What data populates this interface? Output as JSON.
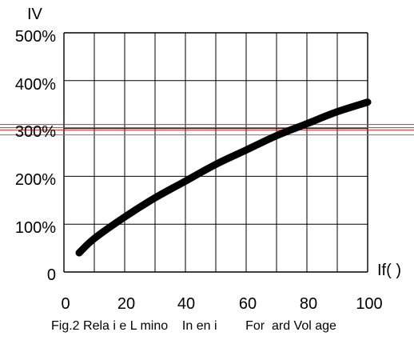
{
  "chart_data": {
    "type": "line",
    "title": "",
    "caption": "Fig.2 Rela i e L mino    In en i        For  ard Vol age",
    "ylabel": "IV",
    "xlabel": "If(   )",
    "xlim": [
      0,
      100
    ],
    "ylim": [
      0,
      500
    ],
    "x_ticks": [
      "0",
      "20",
      "40",
      "60",
      "80",
      "100"
    ],
    "y_ticks": [
      "0",
      "100%",
      "200%",
      "300%",
      "400%",
      "500%"
    ],
    "grid": true,
    "series": [
      {
        "x": [
          5,
          10,
          20,
          30,
          40,
          50,
          60,
          70,
          80,
          90,
          100
        ],
        "y": [
          40,
          70,
          115,
          155,
          190,
          225,
          255,
          285,
          310,
          335,
          355
        ]
      }
    ]
  },
  "colors": {
    "line": "#000000",
    "grid": "#000000",
    "overlay_red": "#cc3333",
    "overlay_gray": "#777777"
  }
}
